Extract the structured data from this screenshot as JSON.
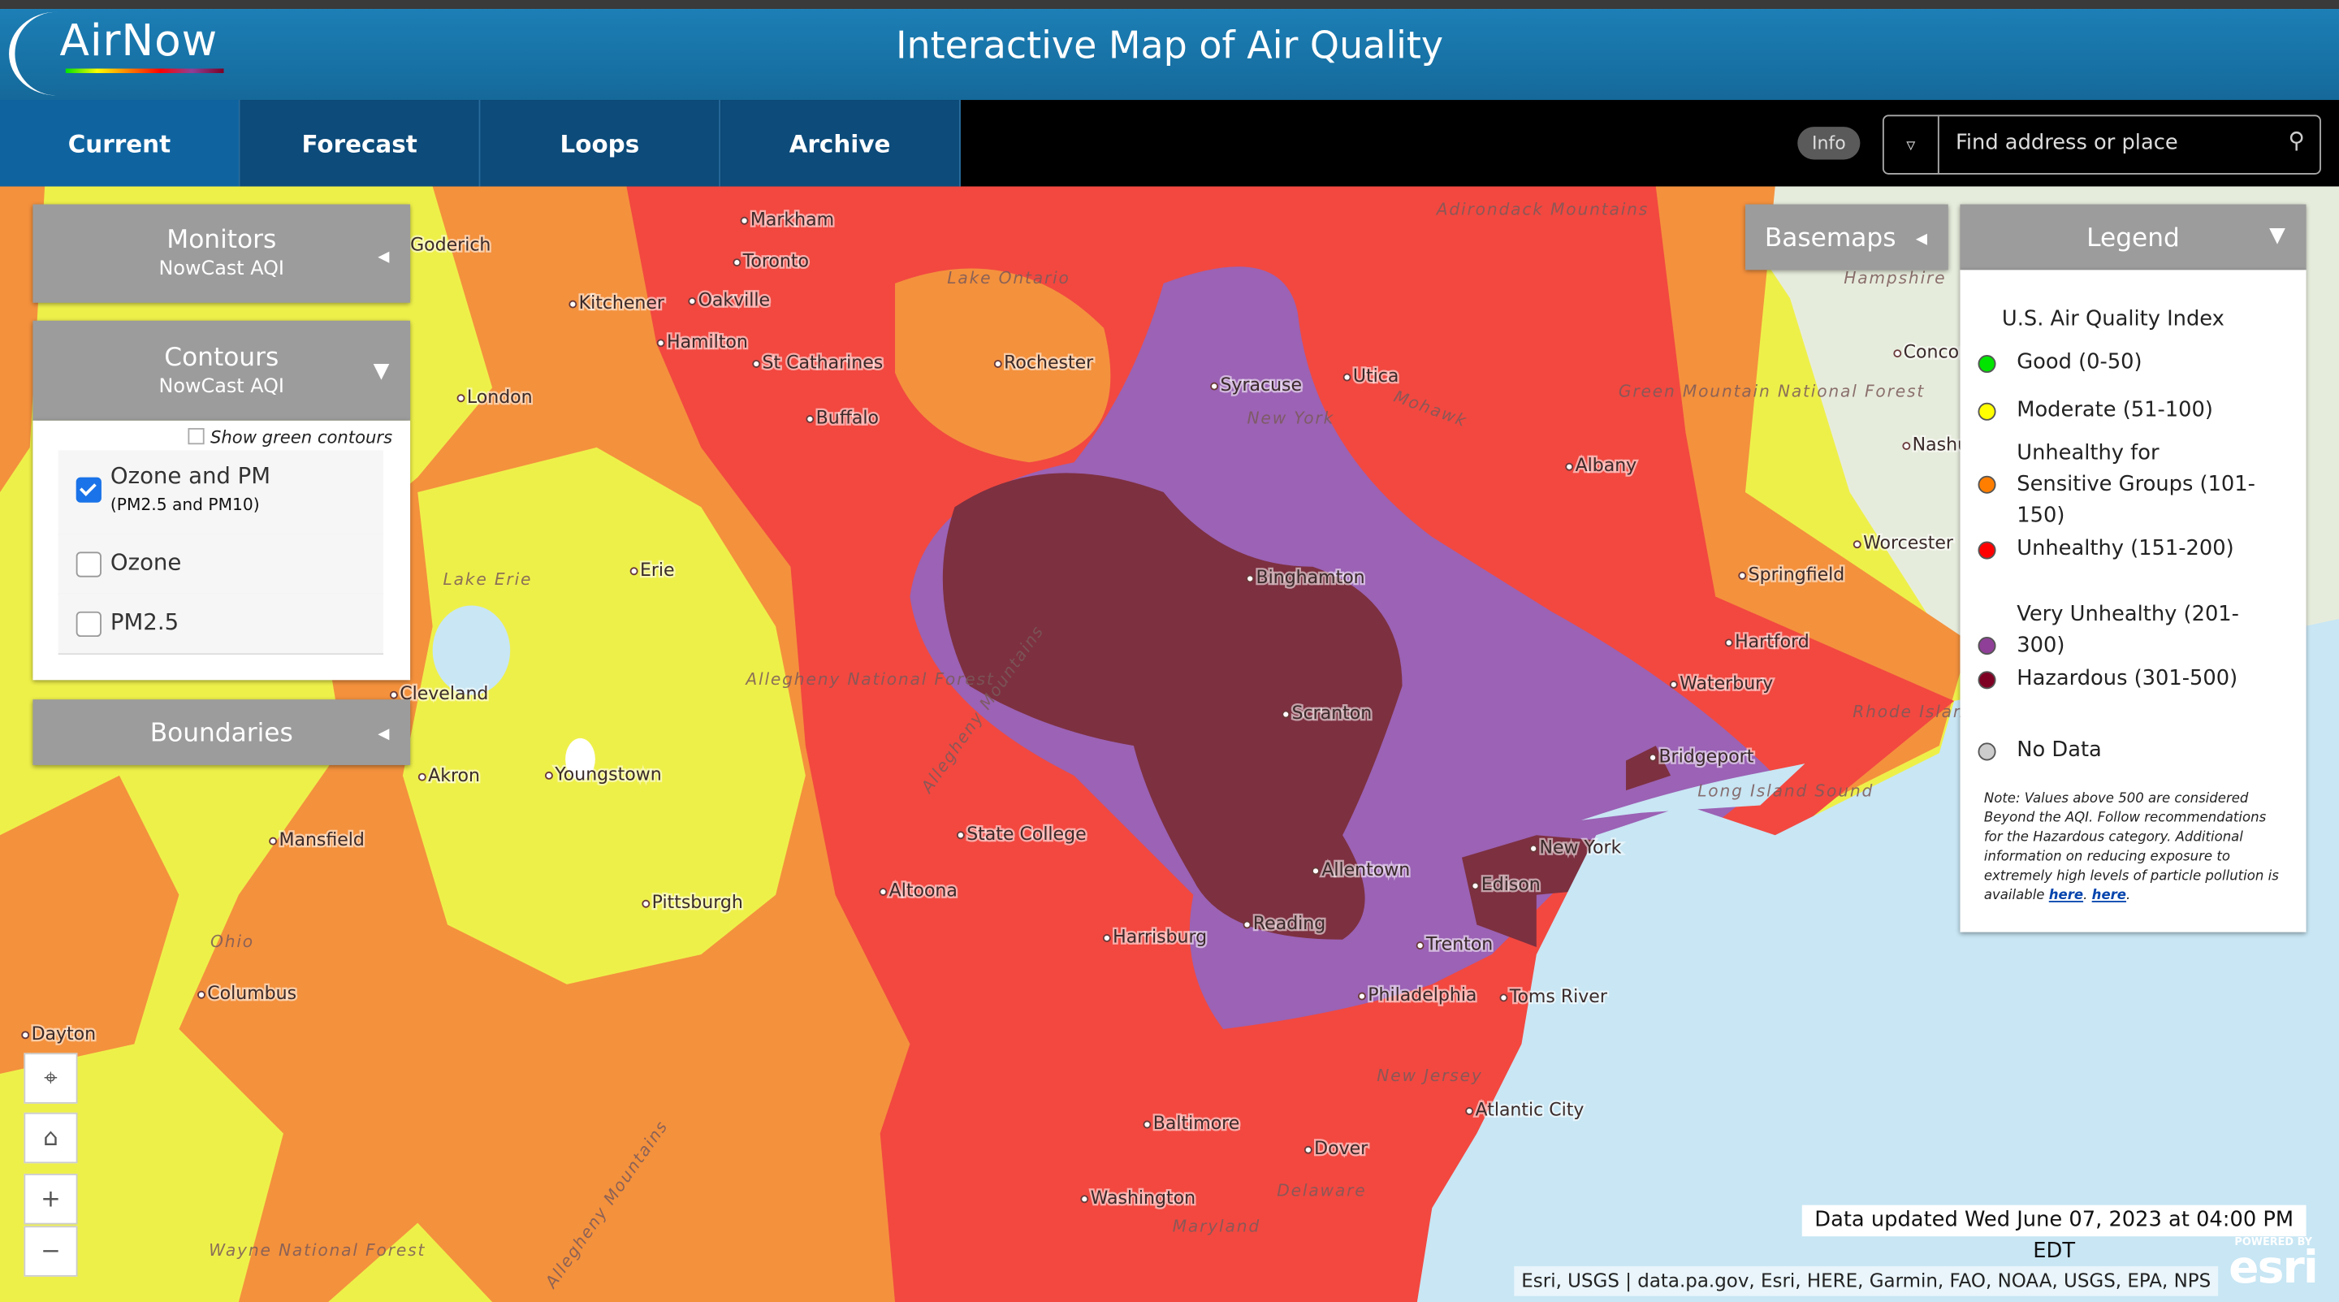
{
  "header": {
    "logo": "AirNow",
    "title": "Interactive Map of Air Quality"
  },
  "nav": {
    "tabs": [
      "Current",
      "Forecast",
      "Loops",
      "Archive"
    ],
    "info": "Info",
    "search_placeholder": "Find address or place"
  },
  "panels": {
    "monitors": {
      "title": "Monitors",
      "subtitle": "NowCast AQI"
    },
    "contours": {
      "title": "Contours",
      "subtitle": "NowCast AQI",
      "show_green": "Show green contours",
      "options": [
        {
          "label": "Ozone and PM",
          "sublabel": "(PM2.5 and PM10)",
          "checked": true
        },
        {
          "label": "Ozone",
          "checked": false
        },
        {
          "label": "PM2.5",
          "checked": false
        }
      ]
    },
    "boundaries": {
      "title": "Boundaries"
    },
    "basemaps": {
      "title": "Basemaps"
    }
  },
  "legend": {
    "title": "Legend",
    "heading": "U.S. Air Quality Index",
    "items": [
      {
        "label": "Good (0-50)",
        "color": "#00e400"
      },
      {
        "label": "Moderate (51-100)",
        "color": "#ffff00"
      },
      {
        "label": "Unhealthy for Sensitive Groups (101-150)",
        "color": "#ff7e00"
      },
      {
        "label": "Unhealthy (151-200)",
        "color": "#ff0000"
      },
      {
        "label": "Very Unhealthy (201-300)",
        "color": "#8f3f97"
      },
      {
        "label": "Hazardous (301-500)",
        "color": "#7e0023"
      },
      {
        "label": "No Data",
        "color": "#cccccc"
      }
    ],
    "note": "Note: Values above 500 are considered Beyond the AQI. Follow recommendations for the Hazardous category. Additional information on reducing exposure to extremely high levels of particle pollution is available",
    "links": [
      "here",
      "here"
    ],
    "punctuation": "."
  },
  "map": {
    "labels": [
      "Markham",
      "Toronto",
      "Kitchener",
      "Oakville",
      "Hamilton",
      "St Catharines",
      "Rochester",
      "Syracuse",
      "Utica",
      "New York",
      "Buffalo",
      "London",
      "Albany",
      "Binghamton",
      "Erie",
      "Cleveland",
      "Akron",
      "Youngstown",
      "Scranton",
      "State College",
      "Mansfield",
      "Pittsburgh",
      "Altoona",
      "Harrisburg",
      "Allentown",
      "Reading",
      "Trenton",
      "New York",
      "Edison",
      "Bridgeport",
      "Waterbury",
      "Hartford",
      "Springfield",
      "Worcester",
      "Concord",
      "Nashua",
      "Philadelphia",
      "Toms River",
      "Atlantic City",
      "Baltimore",
      "Dover",
      "Washington",
      "Columbus",
      "Dayton",
      "Goderich",
      "Ohio",
      "New Jersey",
      "Delaware",
      "Maryland",
      "Lake Erie",
      "Lake Ontario",
      "Allegheny National Forest",
      "Allegheny Mountains",
      "Allegheny Mountains",
      "Wayne National Forest",
      "Green Mountain National Forest",
      "Long Island Sound",
      "Rhode Island",
      "Mohawk",
      "Hampshire",
      "Adirondack Mountains"
    ]
  },
  "status": {
    "updated": "Data updated Wed June 07, 2023 at 04:00 PM EDT",
    "attribution": "Esri, USGS | data.pa.gov, Esri, HERE, Garmin, FAO, NOAA, USGS, EPA, NPS",
    "powered_by": "POWERED BY",
    "esri": "esri"
  }
}
